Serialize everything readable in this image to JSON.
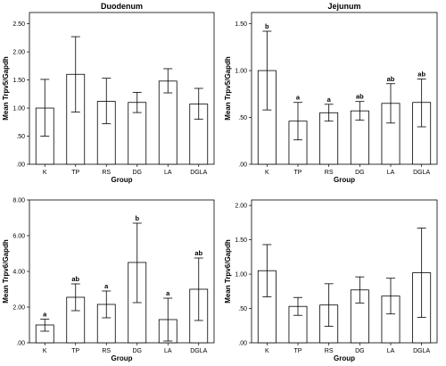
{
  "chart_data": [
    {
      "type": "bar",
      "title": "Duodenum",
      "xlabel": "Group",
      "ylabel": "Mean Trpv5/Gapdh",
      "categories": [
        "K",
        "TP",
        "RS",
        "DG",
        "LA",
        "DGLA"
      ],
      "values": [
        1.0,
        1.6,
        1.12,
        1.1,
        1.48,
        1.07
      ],
      "error_low": [
        0.5,
        0.93,
        0.72,
        0.92,
        1.27,
        0.8
      ],
      "error_high": [
        1.51,
        2.27,
        1.53,
        1.28,
        1.7,
        1.35
      ],
      "sig_labels": [
        "",
        "",
        "",
        "",
        "",
        ""
      ],
      "ylim": [
        0,
        2.7
      ],
      "yticks": [
        0,
        0.5,
        1.0,
        1.5,
        2.0,
        2.5
      ],
      "ytick_labels": [
        ".00",
        ".50",
        "1.00",
        "1.50",
        "2.00",
        "2.50"
      ],
      "error_bars": true,
      "grid": false
    },
    {
      "type": "bar",
      "title": "Jejunum",
      "xlabel": "Group",
      "ylabel": "Mean Trpv5/Gapdh",
      "categories": [
        "K",
        "TP",
        "RS",
        "DG",
        "LA",
        "DGLA"
      ],
      "values": [
        1.0,
        0.46,
        0.55,
        0.57,
        0.65,
        0.66
      ],
      "error_low": [
        0.58,
        0.26,
        0.46,
        0.47,
        0.44,
        0.4
      ],
      "error_high": [
        1.42,
        0.66,
        0.64,
        0.67,
        0.86,
        0.91
      ],
      "sig_labels": [
        "b",
        "a",
        "a",
        "ab",
        "ab",
        "ab"
      ],
      "ylim": [
        0,
        1.62
      ],
      "yticks": [
        0,
        0.5,
        1.0,
        1.5
      ],
      "ytick_labels": [
        ".00",
        ".50",
        "1.00",
        "1.50"
      ],
      "error_bars": true,
      "grid": false
    },
    {
      "type": "bar",
      "title": "",
      "xlabel": "Group",
      "ylabel": "Mean Trpv6/Gapdh",
      "categories": [
        "K",
        "TP",
        "RS",
        "DG",
        "LA",
        "DGLA"
      ],
      "values": [
        1.0,
        2.55,
        2.15,
        4.5,
        1.3,
        3.0
      ],
      "error_low": [
        0.65,
        1.8,
        1.4,
        2.25,
        0.1,
        1.25
      ],
      "error_high": [
        1.32,
        3.3,
        2.9,
        6.7,
        2.5,
        4.75
      ],
      "sig_labels": [
        "a",
        "ab",
        "a",
        "b",
        "a",
        "ab"
      ],
      "ylim": [
        0,
        8.0
      ],
      "yticks": [
        0,
        2,
        4,
        6,
        8
      ],
      "ytick_labels": [
        ".00",
        "2.00",
        "4.00",
        "6.00",
        "8.00"
      ],
      "error_bars": true,
      "grid": false
    },
    {
      "type": "bar",
      "title": "",
      "xlabel": "Group",
      "ylabel": "Mean Trpv6/Gapdh",
      "categories": [
        "K",
        "TP",
        "RS",
        "DG",
        "LA",
        "DGLA"
      ],
      "values": [
        1.05,
        0.53,
        0.55,
        0.77,
        0.68,
        1.02
      ],
      "error_low": [
        0.67,
        0.4,
        0.24,
        0.58,
        0.42,
        0.37
      ],
      "error_high": [
        1.43,
        0.66,
        0.86,
        0.96,
        0.94,
        1.67
      ],
      "sig_labels": [
        "",
        "",
        "",
        "",
        "",
        ""
      ],
      "ylim": [
        0,
        2.08
      ],
      "yticks": [
        0,
        0.5,
        1.0,
        1.5,
        2.0
      ],
      "ytick_labels": [
        ".00",
        ".50",
        "1.00",
        "1.50",
        "2.00"
      ],
      "error_bars": true,
      "grid": false
    }
  ]
}
